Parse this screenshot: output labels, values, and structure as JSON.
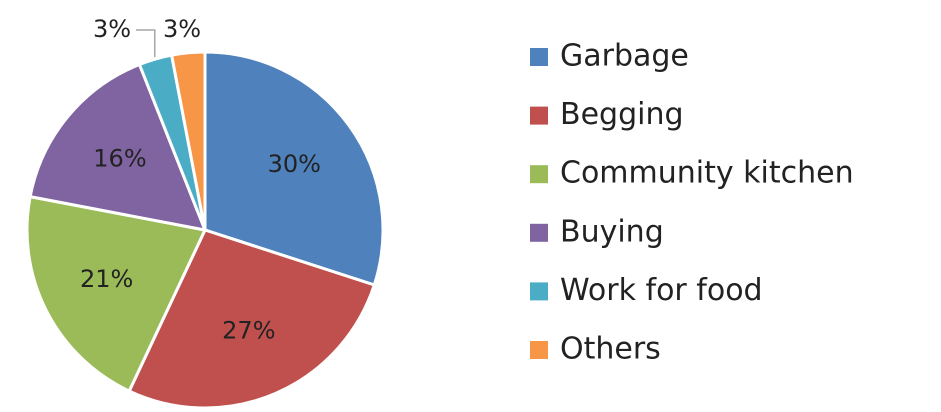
{
  "chart_data": {
    "type": "pie",
    "categories": [
      "Garbage",
      "Begging",
      "Community kitchen",
      "Buying",
      "Work for food",
      "Others"
    ],
    "values": [
      30,
      27,
      21,
      16,
      3,
      3
    ],
    "value_labels": [
      "30%",
      "27%",
      "21%",
      "16%",
      "3%",
      "3%"
    ],
    "colors": [
      "#4f81bd",
      "#c0504d",
      "#9bbb59",
      "#8064a2",
      "#4bacc6",
      "#f79646"
    ],
    "legend": "right"
  }
}
